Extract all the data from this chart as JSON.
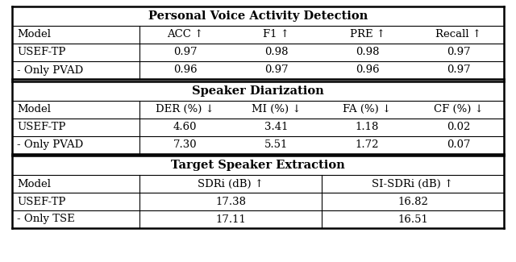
{
  "section1_title": "Personal Voice Activity Detection",
  "section1_header": [
    "Model",
    "ACC ↑",
    "F1 ↑",
    "PRE ↑",
    "Recall ↑"
  ],
  "section1_rows": [
    [
      "USEF-TP",
      "0.97",
      "0.98",
      "0.98",
      "0.97"
    ],
    [
      "- Only PVAD",
      "0.96",
      "0.97",
      "0.96",
      "0.97"
    ]
  ],
  "section2_title": "Speaker Diarization",
  "section2_header": [
    "Model",
    "DER (%) ↓",
    "MI (%) ↓",
    "FA (%) ↓",
    "CF (%) ↓"
  ],
  "section2_rows": [
    [
      "USEF-TP",
      "4.60",
      "3.41",
      "1.18",
      "0.02"
    ],
    [
      "- Only PVAD",
      "7.30",
      "5.51",
      "1.72",
      "0.07"
    ]
  ],
  "section3_title": "Target Speaker Extraction",
  "section3_header": [
    "Model",
    "SDRi (dB) ↑",
    "SI-SDRi (dB) ↑"
  ],
  "section3_rows": [
    [
      "USEF-TP",
      "17.38",
      "16.82"
    ],
    [
      "- Only TSE",
      "17.11",
      "16.51"
    ]
  ],
  "bg_color": "#ffffff",
  "title_fontsize": 10.5,
  "header_fontsize": 9.5,
  "cell_fontsize": 9.5
}
